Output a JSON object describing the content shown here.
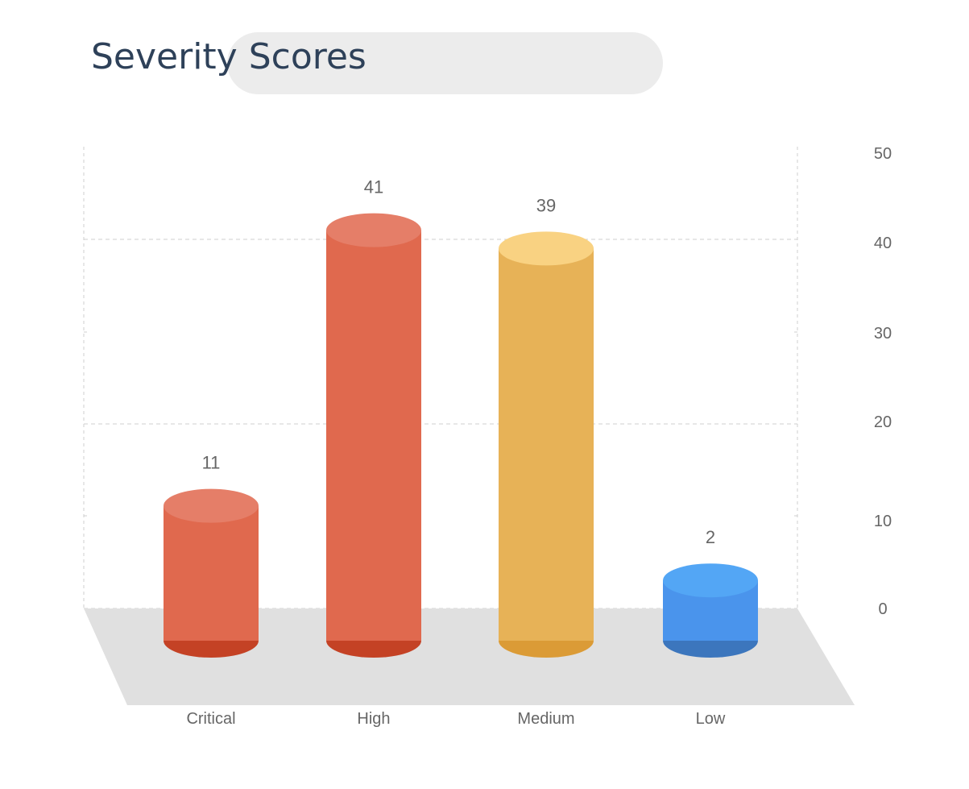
{
  "header": {
    "title": "Severity Scores"
  },
  "chart_data": {
    "type": "bar",
    "style": "3d-cylinder",
    "title": "Severity Scores",
    "xlabel": "",
    "ylabel": "",
    "categories": [
      "Critical",
      "High",
      "Medium",
      "Low"
    ],
    "values": [
      11,
      41,
      39,
      2
    ],
    "data_labels": [
      "11",
      "41",
      "39",
      "2"
    ],
    "y_ticks": [
      "0",
      "10",
      "20",
      "30",
      "40",
      "50"
    ],
    "ylim": [
      0,
      50
    ],
    "y_axis_side": "right",
    "grid": true,
    "legend": "none",
    "colors": {
      "Critical": {
        "body": "#e0694e",
        "top": "#e57e68",
        "bottom": "#c44225"
      },
      "High": {
        "body": "#e0694e",
        "top": "#e57e68",
        "bottom": "#c44225"
      },
      "Medium": {
        "body": "#e7b257",
        "top": "#f9d282",
        "bottom": "#db9b36"
      },
      "Low": {
        "body": "#4a94ec",
        "top": "#53a6f5",
        "bottom": "#3c76bd"
      }
    },
    "floor_color": "#e0e0e0",
    "grid_color": "#cfcfcf",
    "label_color": "#666666"
  }
}
